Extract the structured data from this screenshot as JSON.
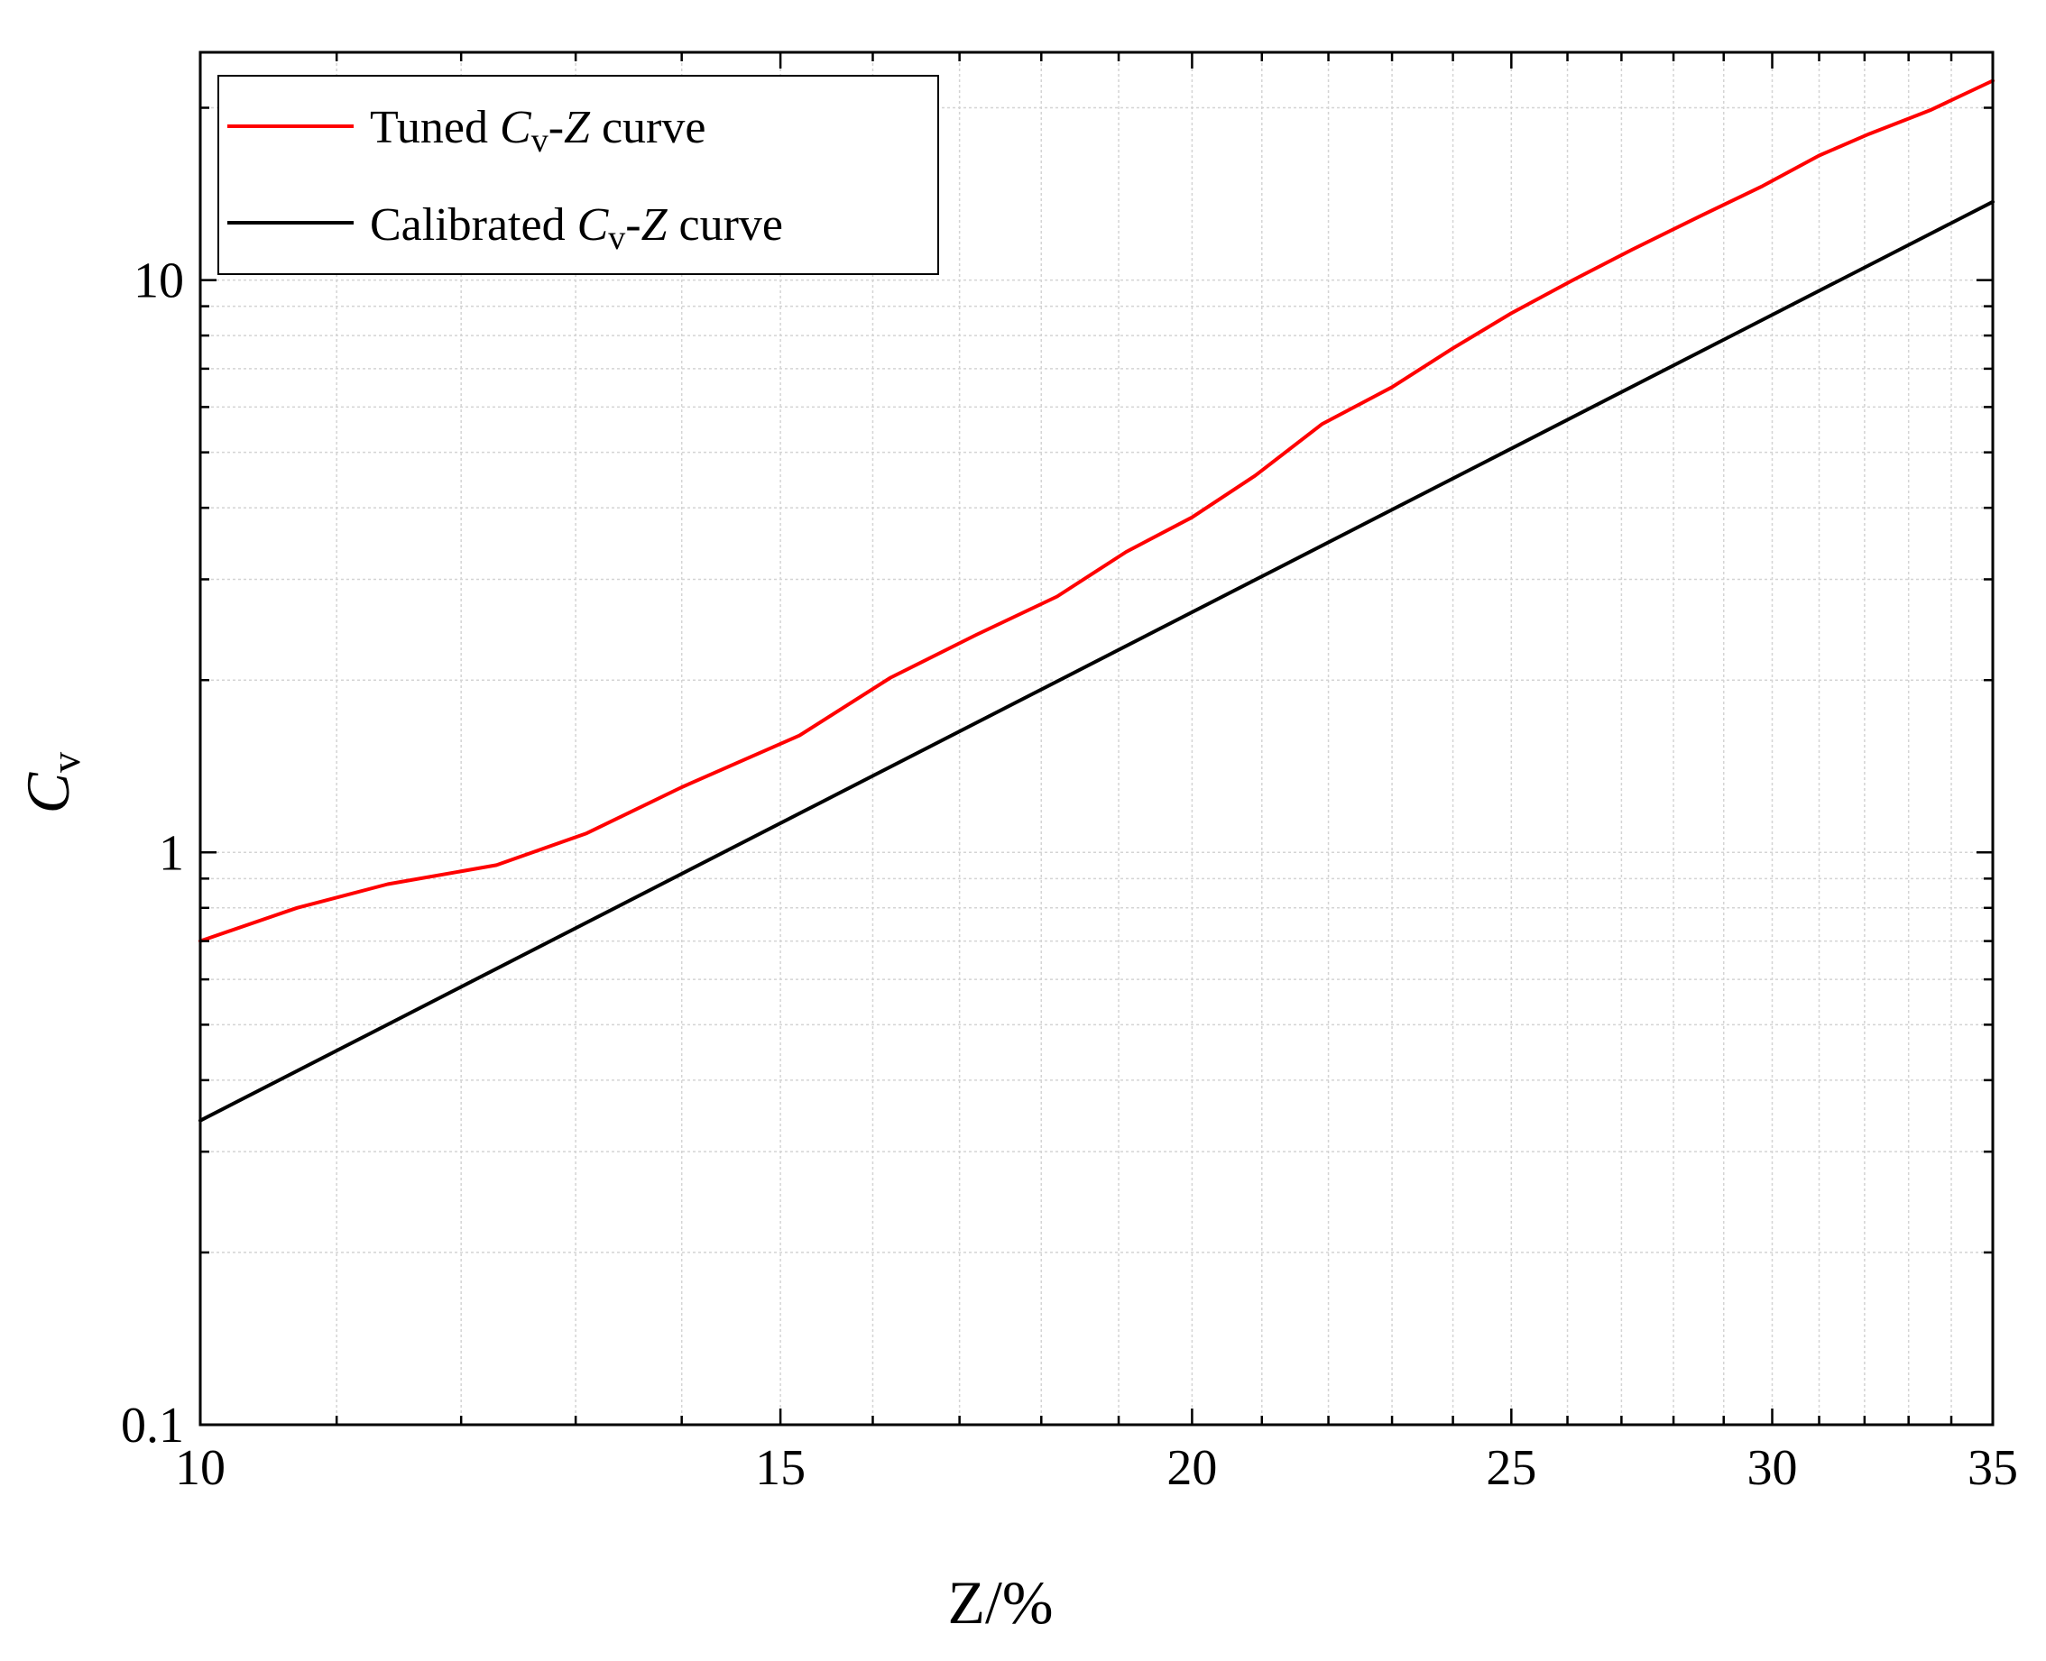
{
  "chart_data": {
    "type": "line",
    "title": "",
    "xlabel": "Z/%",
    "ylabel_main": "C",
    "ylabel_sub": "v",
    "xscale": "log",
    "yscale": "log",
    "xlim": [
      10,
      35
    ],
    "ylim": [
      0.1,
      25
    ],
    "xticks": [
      10,
      15,
      20,
      25,
      30,
      35
    ],
    "xtick_labels": [
      "10",
      "15",
      "20",
      "25",
      "30",
      "35"
    ],
    "yticks": [
      0.1,
      1,
      10
    ],
    "ytick_labels": [
      "0.1",
      "1",
      "10"
    ],
    "grid": true,
    "legend_position": "top-left",
    "series": [
      {
        "name": "Tuned C_v-Z curve",
        "legend": {
          "pre": "Tuned ",
          "c": "C",
          "sub": "v",
          "mid": "-",
          "z": "Z",
          "post": " curve"
        },
        "color": "#ff0000",
        "x": [
          10,
          10.7,
          11.4,
          12.3,
          13.1,
          14.0,
          15.2,
          16.2,
          17.2,
          18.2,
          19.1,
          20.0,
          20.9,
          21.9,
          23.0,
          24.0,
          25.0,
          26.1,
          27.2,
          28.5,
          29.8,
          31.0,
          32.1,
          33.5,
          35.0
        ],
        "y": [
          0.7,
          0.8,
          0.88,
          0.95,
          1.08,
          1.3,
          1.6,
          2.02,
          2.4,
          2.8,
          3.35,
          3.85,
          4.55,
          5.6,
          6.5,
          7.6,
          8.75,
          10.0,
          11.3,
          12.9,
          14.6,
          16.5,
          18.0,
          19.8,
          22.3
        ]
      },
      {
        "name": "Calibrated C_v-Z curve",
        "legend": {
          "pre": "Calibrated ",
          "c": "C",
          "sub": "v",
          "mid": "-",
          "z": "Z",
          "post": " curve"
        },
        "color": "#000000",
        "x": [
          10,
          35
        ],
        "y": [
          0.34,
          13.7
        ]
      }
    ]
  }
}
